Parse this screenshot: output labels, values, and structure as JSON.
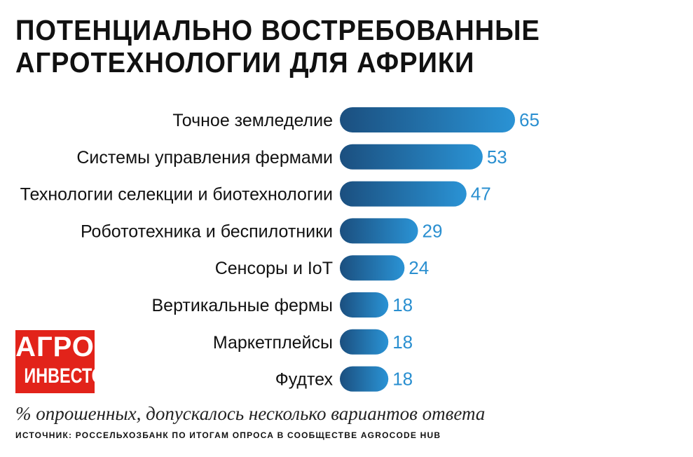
{
  "header": {
    "title_line1": "ПОТЕНЦИАЛЬНО ВОСТРЕБОВАННЫЕ",
    "title_line2": "АГРОТЕХНОЛОГИИ ДЛЯ АФРИКИ"
  },
  "logo": {
    "line1": "АГРО",
    "line2": "ИНВЕСТОР",
    "background": "#e2231a"
  },
  "footer": {
    "note": "% опрошенных, допускалось несколько вариантов ответа",
    "source": "ИСТОЧНИК: РОССЕЛЬХОЗБАНК ПО ИТОГАМ ОПРОСА В СООБЩЕСТВЕ AGROCODE HUB"
  },
  "chart_data": {
    "type": "bar",
    "orientation": "horizontal",
    "categories": [
      "Точное земледелие",
      "Системы управления фермами",
      "Технологии селекции и биотехнологии",
      "Робототехника и беспилотники",
      "Сенсоры и IoT",
      "Вертикальные фермы",
      "Маркетплейсы",
      "Фудтех"
    ],
    "values": [
      65,
      53,
      47,
      29,
      24,
      18,
      18,
      18
    ],
    "value_labels": [
      "65",
      "53",
      "47",
      "29",
      "24",
      "18",
      "18",
      "18"
    ],
    "xlim": [
      0,
      65
    ],
    "grid": false,
    "legend": "none",
    "colors": {
      "bar_dark": "#1b4f7f",
      "bar_light": "#2a93d5",
      "value_text": "#2a8fd0"
    }
  }
}
